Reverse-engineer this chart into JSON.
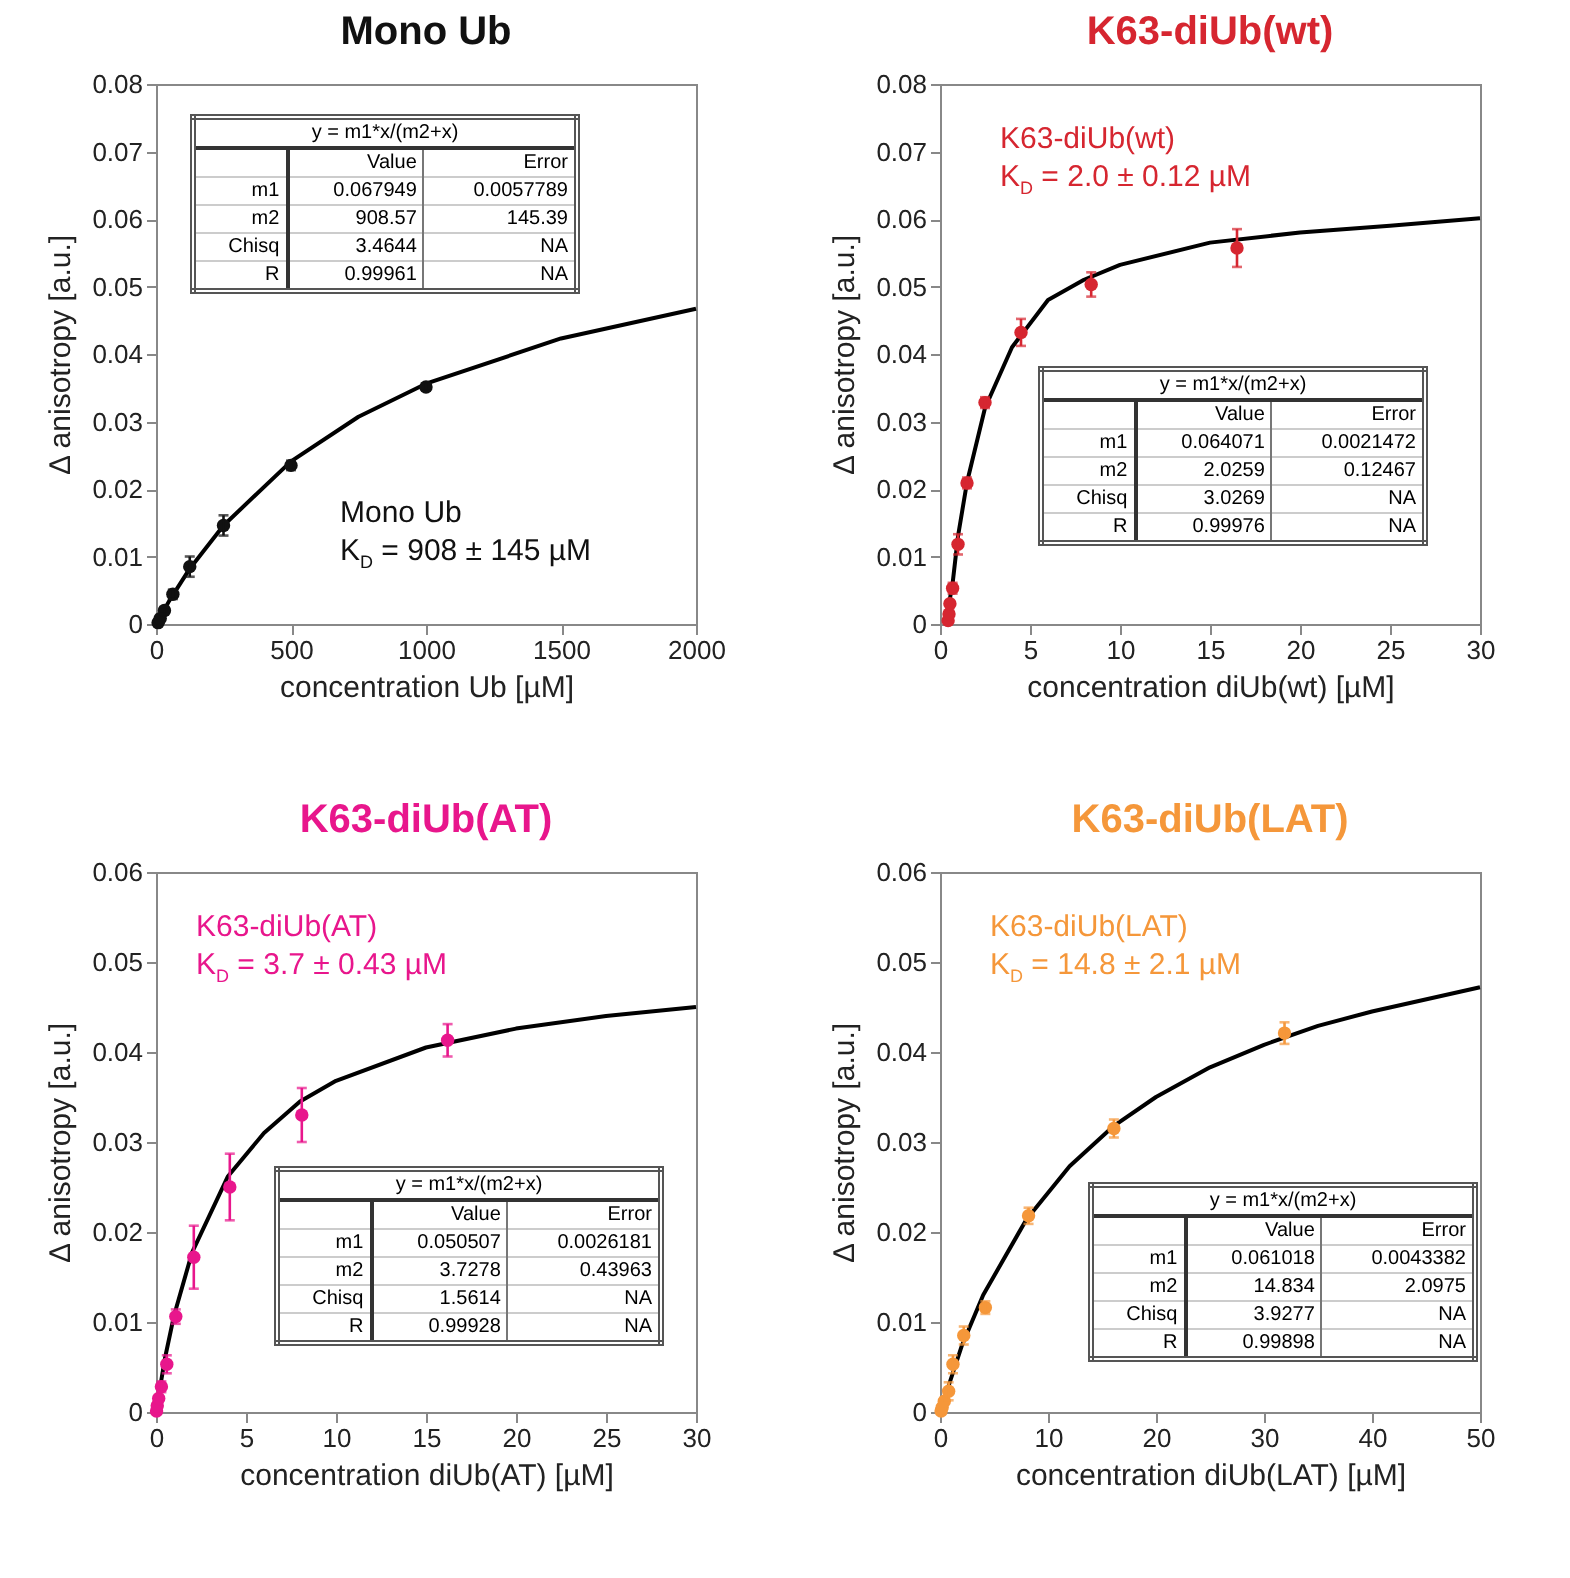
{
  "chart_data": [
    {
      "type": "scatter",
      "title": "Mono Ub",
      "xlabel": "concentration Ub [µM]",
      "ylabel": "Δ anisotropy [a.u.]",
      "xlim": [
        0,
        2000
      ],
      "xticks": [
        0,
        500,
        1000,
        1500,
        2000
      ],
      "ylim": [
        0,
        0.08
      ],
      "yticks": [
        0,
        0.01,
        0.02,
        0.03,
        0.04,
        0.05,
        0.06,
        0.07,
        0.08
      ],
      "series": [
        {
          "marker": "circle",
          "color": "#111111",
          "x": [
            7.8,
            15.6,
            31.25,
            62.5,
            125,
            250,
            500,
            1000
          ],
          "values": [
            0.0002,
            0.0008,
            0.002,
            0.0044,
            0.0085,
            0.0146,
            0.0235,
            0.0351
          ],
          "errors": [
            null,
            null,
            0.0005,
            0.0007,
            0.0015,
            0.0015,
            0.0007,
            0.0005
          ]
        },
        {
          "type": "line",
          "color": "#000000",
          "x": [
            0,
            50,
            125,
            250,
            500,
            750,
            1000,
            1500,
            2000
          ],
          "values": [
            0,
            0.0035,
            0.0082,
            0.0146,
            0.0241,
            0.0307,
            0.0356,
            0.0423,
            0.0467
          ]
        }
      ],
      "annotations": [
        "Mono Ub",
        "K$_{D}$ = 908 ± 145 µM",
        "y = m1*x/(m2+x)",
        "Value",
        "Error",
        "m1",
        "0.067949",
        "0.0057789",
        "m2",
        "908.57",
        "145.39",
        "Chisq",
        "3.4644",
        "NA",
        "R",
        "0.99961",
        "NA"
      ]
    },
    {
      "type": "scatter",
      "title": "K63-diUb(wt)",
      "xlabel": "concentration diUb(wt) [µM]",
      "ylabel": "Δ anisotropy [a.u.]",
      "xlim": [
        0,
        30
      ],
      "xticks": [
        0,
        5,
        10,
        15,
        20,
        25,
        30
      ],
      "ylim": [
        0,
        0.08
      ],
      "yticks": [
        0,
        0.01,
        0.02,
        0.03,
        0.04,
        0.05,
        0.06,
        0.07,
        0.08
      ],
      "series": [
        {
          "marker": "circle",
          "color": "#d62630",
          "x": [
            0.45,
            0.5,
            0.55,
            0.7,
            1.0,
            1.5,
            2.5,
            4.5,
            8.4,
            16.5
          ],
          "values": [
            0.0005,
            0.0015,
            0.003,
            0.0053,
            0.0118,
            0.0209,
            0.0328,
            0.0432,
            0.0503,
            0.0557
          ],
          "errors": [
            null,
            null,
            null,
            0.0008,
            0.0015,
            0.0008,
            0.0008,
            0.002,
            0.0018,
            0.0028
          ]
        },
        {
          "type": "line",
          "color": "#000000",
          "x": [
            0.3,
            0.7,
            1,
            1.5,
            2.5,
            4,
            6,
            8,
            10,
            15,
            20,
            25,
            30
          ],
          "values": [
            0,
            0.006,
            0.013,
            0.021,
            0.032,
            0.041,
            0.048,
            0.051,
            0.0532,
            0.0565,
            0.058,
            0.059,
            0.0601
          ]
        }
      ],
      "annotations": [
        "K63-diUb(wt)",
        "K$_{D}$ = 2.0 ± 0.12 µM",
        "y = m1*x/(m2+x)",
        "Value",
        "Error",
        "m1",
        "0.064071",
        "0.0021472",
        "m2",
        "2.0259",
        "0.12467",
        "Chisq",
        "3.0269",
        "NA",
        "R",
        "0.99976",
        "NA"
      ]
    },
    {
      "type": "scatter",
      "title": "K63-diUb(AT)",
      "xlabel": "concentration diUb(AT) [µM]",
      "ylabel": "Δ anisotropy [a.u.]",
      "xlim": [
        0,
        30
      ],
      "xticks": [
        0,
        5,
        10,
        15,
        20,
        25,
        30
      ],
      "ylim": [
        0,
        0.06
      ],
      "yticks": [
        0,
        0.01,
        0.02,
        0.03,
        0.04,
        0.05,
        0.06
      ],
      "series": [
        {
          "marker": "circle",
          "color": "#e8168c",
          "x": [
            0.03,
            0.07,
            0.15,
            0.3,
            0.6,
            1.1,
            2.1,
            4.1,
            8.1,
            16.2
          ],
          "values": [
            0.0001,
            0.0007,
            0.0015,
            0.0028,
            0.0053,
            0.0106,
            0.0172,
            0.025,
            0.033,
            0.0413
          ],
          "errors": [
            null,
            null,
            null,
            0.0006,
            0.001,
            0.0008,
            0.0035,
            0.0037,
            0.003,
            0.0018
          ]
        },
        {
          "type": "line",
          "color": "#000000",
          "x": [
            0,
            0.5,
            1,
            2,
            4,
            6,
            8,
            10,
            15,
            20,
            25,
            30
          ],
          "values": [
            0,
            0.006,
            0.0107,
            0.0177,
            0.0262,
            0.031,
            0.0345,
            0.0368,
            0.0405,
            0.0426,
            0.044,
            0.045
          ]
        }
      ],
      "annotations": [
        "K63-diUb(AT)",
        "K$_{D}$ = 3.7 ± 0.43 µM",
        "y = m1*x/(m2+x)",
        "Value",
        "Error",
        "m1",
        "0.050507",
        "0.0026181",
        "m2",
        "3.7278",
        "0.43963",
        "Chisq",
        "1.5614",
        "NA",
        "R",
        "0.99928",
        "NA"
      ]
    },
    {
      "type": "scatter",
      "title": "K63-diUb(LAT)",
      "xlabel": "concentration diUb(LAT) [µM]",
      "ylabel": "Δ anisotropy [a.u.]",
      "xlim": [
        0,
        50
      ],
      "xticks": [
        0,
        10,
        20,
        30,
        40,
        50
      ],
      "ylim": [
        0,
        0.06
      ],
      "yticks": [
        0,
        0.01,
        0.02,
        0.03,
        0.04,
        0.05,
        0.06
      ],
      "series": [
        {
          "marker": "circle",
          "color": "#f5973a",
          "x": [
            0.1,
            0.2,
            0.4,
            0.8,
            1.2,
            2.2,
            4.2,
            8.2,
            16.1,
            31.9
          ],
          "values": [
            0.0001,
            0.0005,
            0.0012,
            0.0023,
            0.0053,
            0.0085,
            0.0116,
            0.0218,
            0.0315,
            0.0421
          ],
          "errors": [
            null,
            null,
            null,
            0.001,
            0.001,
            0.001,
            0.0007,
            0.0009,
            0.001,
            0.0012
          ]
        },
        {
          "type": "line",
          "color": "#000000",
          "x": [
            0,
            2,
            4,
            8,
            12,
            16,
            20,
            25,
            30,
            35,
            40,
            50
          ],
          "values": [
            0,
            0.0073,
            0.013,
            0.0214,
            0.0273,
            0.0317,
            0.035,
            0.0383,
            0.0408,
            0.0429,
            0.0445,
            0.0472
          ]
        }
      ],
      "annotations": [
        "K63-diUb(LAT)",
        "K$_{D}$ = 14.8 ± 2.1 µM",
        "y = m1*x/(m2+x)",
        "Value",
        "Error",
        "m1",
        "0.061018",
        "0.0043382",
        "m2",
        "14.834",
        "2.0975",
        "Chisq",
        "3.9277",
        "NA",
        "R",
        "0.99898",
        "NA"
      ]
    }
  ]
}
